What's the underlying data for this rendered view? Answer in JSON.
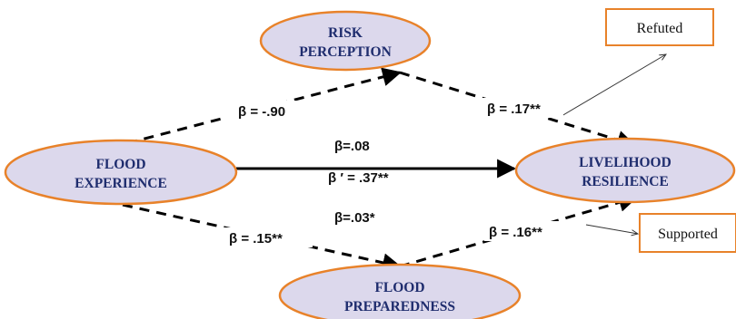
{
  "nodes": {
    "risk": {
      "line1": "RISK",
      "line2": "PERCEPTION"
    },
    "flood_exp": {
      "line1": "FLOOD",
      "line2": "EXPERIENCE"
    },
    "livelihood": {
      "line1": "LIVELIHOOD",
      "line2": "RESILIENCE"
    },
    "prepared": {
      "line1": "FLOOD",
      "line2": "PREPAREDNESS"
    }
  },
  "boxes": {
    "refuted": "Refuted",
    "supported": "Supported"
  },
  "coefficients": {
    "exp_to_risk": "β = -.90",
    "risk_to_live": "β = .17**",
    "direct_a": "β=.08",
    "direct_b": "β ′  = .37**",
    "direct_c": "β=.03*",
    "exp_to_prep": "β = .15**",
    "prep_to_live": "β = .16**"
  },
  "colors": {
    "node_fill": "#dcd8ec",
    "node_stroke": "#e8822a",
    "box_stroke": "#e8822a",
    "text_dark": "#1f2d6e"
  }
}
